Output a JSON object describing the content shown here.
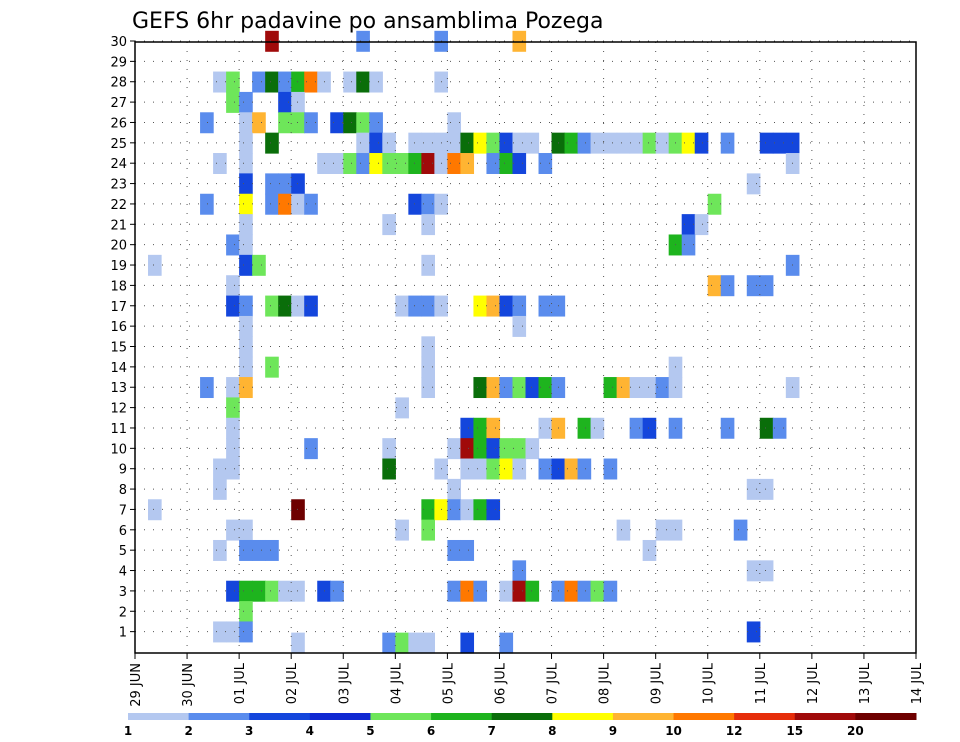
{
  "chart_data": {
    "type": "heatmap",
    "title": "GEFS 6hr padavine po ansamblima Pozega",
    "members": [
      1,
      2,
      3,
      4,
      5,
      6,
      7,
      8,
      9,
      10,
      11,
      12,
      13,
      14,
      15,
      16,
      17,
      18,
      19,
      20,
      21,
      22,
      23,
      24,
      25,
      26,
      27,
      28,
      29,
      30
    ],
    "x_ticks": [
      "29 JUN",
      "30 JUN",
      "01 JUL",
      "02 JUL",
      "03 JUL",
      "04 JUL",
      "05 JUL",
      "06 JUL",
      "07 JUL",
      "08 JUL",
      "09 JUL",
      "10 JUL",
      "11 JUL",
      "12 JUL",
      "13 JUL",
      "14 JUL"
    ],
    "steps_per_day": 4,
    "grid": "dotted",
    "legend": {
      "position": "bottom",
      "labels": [
        "1",
        "2",
        "3",
        "4",
        "5",
        "6",
        "7",
        "8",
        "9",
        "10",
        "12",
        "15",
        "20"
      ],
      "colors": [
        "#b4c8f0",
        "#5a8ced",
        "#1446dc",
        "#0f28d2",
        "#6ee65a",
        "#1eb41e",
        "#0a6e0a",
        "#ffff00",
        "#ffb432",
        "#ff7800",
        "#e62d0a",
        "#a00a0a",
        "#6e0000"
      ]
    },
    "cells": [
      [
        30,
        10,
        11
      ],
      [
        30,
        17,
        1
      ],
      [
        30,
        23,
        1
      ],
      [
        30,
        29,
        8
      ],
      [
        28,
        6,
        0
      ],
      [
        28,
        7,
        4
      ],
      [
        28,
        9,
        1
      ],
      [
        28,
        10,
        6
      ],
      [
        28,
        11,
        1
      ],
      [
        28,
        12,
        5
      ],
      [
        28,
        13,
        9
      ],
      [
        28,
        14,
        0
      ],
      [
        28,
        16,
        0
      ],
      [
        28,
        17,
        6
      ],
      [
        28,
        18,
        0
      ],
      [
        28,
        23,
        0
      ],
      [
        27,
        7,
        4
      ],
      [
        27,
        8,
        1
      ],
      [
        27,
        11,
        2
      ],
      [
        27,
        12,
        0
      ],
      [
        26,
        5,
        1
      ],
      [
        26,
        8,
        0
      ],
      [
        26,
        9,
        8
      ],
      [
        26,
        11,
        4
      ],
      [
        26,
        12,
        4
      ],
      [
        26,
        13,
        1
      ],
      [
        26,
        15,
        2
      ],
      [
        26,
        16,
        6
      ],
      [
        26,
        17,
        4
      ],
      [
        26,
        18,
        1
      ],
      [
        26,
        24,
        0
      ],
      [
        25,
        8,
        0
      ],
      [
        25,
        10,
        6
      ],
      [
        25,
        17,
        0
      ],
      [
        25,
        18,
        2
      ],
      [
        25,
        19,
        0
      ],
      [
        25,
        21,
        0
      ],
      [
        25,
        22,
        0
      ],
      [
        25,
        23,
        0
      ],
      [
        25,
        24,
        0
      ],
      [
        25,
        25,
        6
      ],
      [
        25,
        26,
        7
      ],
      [
        25,
        27,
        4
      ],
      [
        25,
        28,
        2
      ],
      [
        25,
        29,
        0
      ],
      [
        25,
        30,
        0
      ],
      [
        25,
        32,
        6
      ],
      [
        25,
        33,
        5
      ],
      [
        25,
        34,
        1
      ],
      [
        25,
        35,
        0
      ],
      [
        25,
        36,
        0
      ],
      [
        25,
        37,
        0
      ],
      [
        25,
        38,
        0
      ],
      [
        25,
        39,
        4
      ],
      [
        25,
        40,
        0
      ],
      [
        25,
        41,
        4
      ],
      [
        25,
        42,
        7
      ],
      [
        25,
        43,
        2
      ],
      [
        25,
        45,
        1
      ],
      [
        25,
        48,
        2
      ],
      [
        25,
        49,
        2
      ],
      [
        25,
        50,
        2
      ],
      [
        24,
        6,
        0
      ],
      [
        24,
        8,
        0
      ],
      [
        24,
        14,
        0
      ],
      [
        24,
        15,
        0
      ],
      [
        24,
        16,
        4
      ],
      [
        24,
        17,
        1
      ],
      [
        24,
        18,
        7
      ],
      [
        24,
        19,
        4
      ],
      [
        24,
        20,
        4
      ],
      [
        24,
        21,
        5
      ],
      [
        24,
        22,
        11
      ],
      [
        24,
        23,
        0
      ],
      [
        24,
        24,
        9
      ],
      [
        24,
        25,
        8
      ],
      [
        24,
        27,
        1
      ],
      [
        24,
        28,
        5
      ],
      [
        24,
        29,
        2
      ],
      [
        24,
        31,
        1
      ],
      [
        24,
        50,
        0
      ],
      [
        23,
        8,
        2
      ],
      [
        23,
        10,
        1
      ],
      [
        23,
        11,
        1
      ],
      [
        23,
        12,
        2
      ],
      [
        23,
        47,
        0
      ],
      [
        22,
        5,
        1
      ],
      [
        22,
        8,
        7
      ],
      [
        22,
        10,
        1
      ],
      [
        22,
        11,
        9
      ],
      [
        22,
        12,
        0
      ],
      [
        22,
        13,
        1
      ],
      [
        22,
        21,
        2
      ],
      [
        22,
        22,
        1
      ],
      [
        22,
        23,
        0
      ],
      [
        22,
        44,
        4
      ],
      [
        21,
        8,
        0
      ],
      [
        21,
        19,
        0
      ],
      [
        21,
        22,
        0
      ],
      [
        21,
        42,
        2
      ],
      [
        21,
        43,
        0
      ],
      [
        20,
        7,
        1
      ],
      [
        20,
        8,
        0
      ],
      [
        20,
        41,
        5
      ],
      [
        20,
        42,
        1
      ],
      [
        19,
        1,
        0
      ],
      [
        19,
        8,
        2
      ],
      [
        19,
        9,
        4
      ],
      [
        19,
        22,
        0
      ],
      [
        19,
        50,
        1
      ],
      [
        18,
        7,
        0
      ],
      [
        18,
        44,
        8
      ],
      [
        18,
        45,
        1
      ],
      [
        18,
        47,
        1
      ],
      [
        18,
        48,
        1
      ],
      [
        17,
        7,
        2
      ],
      [
        17,
        8,
        1
      ],
      [
        17,
        10,
        4
      ],
      [
        17,
        11,
        6
      ],
      [
        17,
        12,
        0
      ],
      [
        17,
        13,
        2
      ],
      [
        17,
        20,
        0
      ],
      [
        17,
        21,
        1
      ],
      [
        17,
        22,
        1
      ],
      [
        17,
        23,
        0
      ],
      [
        17,
        26,
        7
      ],
      [
        17,
        27,
        8
      ],
      [
        17,
        28,
        2
      ],
      [
        17,
        29,
        1
      ],
      [
        17,
        31,
        1
      ],
      [
        17,
        32,
        1
      ],
      [
        16,
        8,
        0
      ],
      [
        16,
        29,
        0
      ],
      [
        15,
        8,
        0
      ],
      [
        15,
        22,
        0
      ],
      [
        14,
        8,
        0
      ],
      [
        14,
        10,
        4
      ],
      [
        14,
        22,
        0
      ],
      [
        14,
        41,
        0
      ],
      [
        13,
        5,
        1
      ],
      [
        13,
        7,
        0
      ],
      [
        13,
        8,
        8
      ],
      [
        13,
        22,
        0
      ],
      [
        13,
        26,
        6
      ],
      [
        13,
        27,
        8
      ],
      [
        13,
        28,
        1
      ],
      [
        13,
        29,
        4
      ],
      [
        13,
        30,
        2
      ],
      [
        13,
        31,
        5
      ],
      [
        13,
        32,
        1
      ],
      [
        13,
        36,
        5
      ],
      [
        13,
        37,
        8
      ],
      [
        13,
        38,
        0
      ],
      [
        13,
        39,
        0
      ],
      [
        13,
        40,
        1
      ],
      [
        13,
        41,
        0
      ],
      [
        13,
        50,
        0
      ],
      [
        12,
        7,
        4
      ],
      [
        12,
        20,
        0
      ],
      [
        11,
        7,
        0
      ],
      [
        11,
        25,
        2
      ],
      [
        11,
        26,
        5
      ],
      [
        11,
        27,
        8
      ],
      [
        11,
        31,
        0
      ],
      [
        11,
        32,
        8
      ],
      [
        11,
        34,
        5
      ],
      [
        11,
        35,
        0
      ],
      [
        11,
        38,
        1
      ],
      [
        11,
        39,
        2
      ],
      [
        11,
        41,
        1
      ],
      [
        11,
        45,
        1
      ],
      [
        11,
        48,
        6
      ],
      [
        11,
        49,
        1
      ],
      [
        10,
        7,
        0
      ],
      [
        10,
        13,
        1
      ],
      [
        10,
        19,
        0
      ],
      [
        10,
        24,
        0
      ],
      [
        10,
        25,
        11
      ],
      [
        10,
        26,
        5
      ],
      [
        10,
        27,
        2
      ],
      [
        10,
        28,
        4
      ],
      [
        10,
        29,
        4
      ],
      [
        10,
        30,
        0
      ],
      [
        9,
        6,
        0
      ],
      [
        9,
        7,
        0
      ],
      [
        9,
        19,
        6
      ],
      [
        9,
        23,
        0
      ],
      [
        9,
        25,
        0
      ],
      [
        9,
        26,
        0
      ],
      [
        9,
        27,
        4
      ],
      [
        9,
        28,
        7
      ],
      [
        9,
        29,
        0
      ],
      [
        9,
        31,
        1
      ],
      [
        9,
        32,
        2
      ],
      [
        9,
        33,
        8
      ],
      [
        9,
        34,
        1
      ],
      [
        9,
        36,
        1
      ],
      [
        8,
        6,
        0
      ],
      [
        8,
        24,
        0
      ],
      [
        8,
        47,
        0
      ],
      [
        8,
        48,
        0
      ],
      [
        7,
        1,
        0
      ],
      [
        7,
        12,
        12
      ],
      [
        7,
        22,
        5
      ],
      [
        7,
        23,
        7
      ],
      [
        7,
        24,
        1
      ],
      [
        7,
        25,
        0
      ],
      [
        7,
        26,
        5
      ],
      [
        7,
        27,
        2
      ],
      [
        6,
        7,
        0
      ],
      [
        6,
        8,
        0
      ],
      [
        6,
        20,
        0
      ],
      [
        6,
        22,
        4
      ],
      [
        6,
        37,
        0
      ],
      [
        6,
        40,
        0
      ],
      [
        6,
        41,
        0
      ],
      [
        6,
        46,
        1
      ],
      [
        5,
        6,
        0
      ],
      [
        5,
        8,
        1
      ],
      [
        5,
        9,
        1
      ],
      [
        5,
        10,
        1
      ],
      [
        5,
        24,
        1
      ],
      [
        5,
        25,
        1
      ],
      [
        5,
        39,
        0
      ],
      [
        4,
        29,
        1
      ],
      [
        4,
        47,
        0
      ],
      [
        4,
        48,
        0
      ],
      [
        3,
        7,
        2
      ],
      [
        3,
        8,
        5
      ],
      [
        3,
        9,
        5
      ],
      [
        3,
        10,
        4
      ],
      [
        3,
        11,
        0
      ],
      [
        3,
        12,
        0
      ],
      [
        3,
        14,
        2
      ],
      [
        3,
        15,
        1
      ],
      [
        3,
        24,
        1
      ],
      [
        3,
        25,
        9
      ],
      [
        3,
        26,
        1
      ],
      [
        3,
        28,
        0
      ],
      [
        3,
        29,
        11
      ],
      [
        3,
        30,
        5
      ],
      [
        3,
        32,
        1
      ],
      [
        3,
        33,
        9
      ],
      [
        3,
        34,
        1
      ],
      [
        3,
        35,
        4
      ],
      [
        3,
        36,
        1
      ],
      [
        2,
        8,
        4
      ],
      [
        1,
        6,
        0
      ],
      [
        1,
        7,
        0
      ],
      [
        1,
        8,
        1
      ],
      [
        1,
        47,
        2
      ],
      [
        0,
        12,
        0
      ],
      [
        0,
        19,
        1
      ],
      [
        0,
        20,
        4
      ],
      [
        0,
        21,
        0
      ],
      [
        0,
        22,
        0
      ],
      [
        0,
        25,
        2
      ],
      [
        0,
        28,
        1
      ]
    ]
  }
}
